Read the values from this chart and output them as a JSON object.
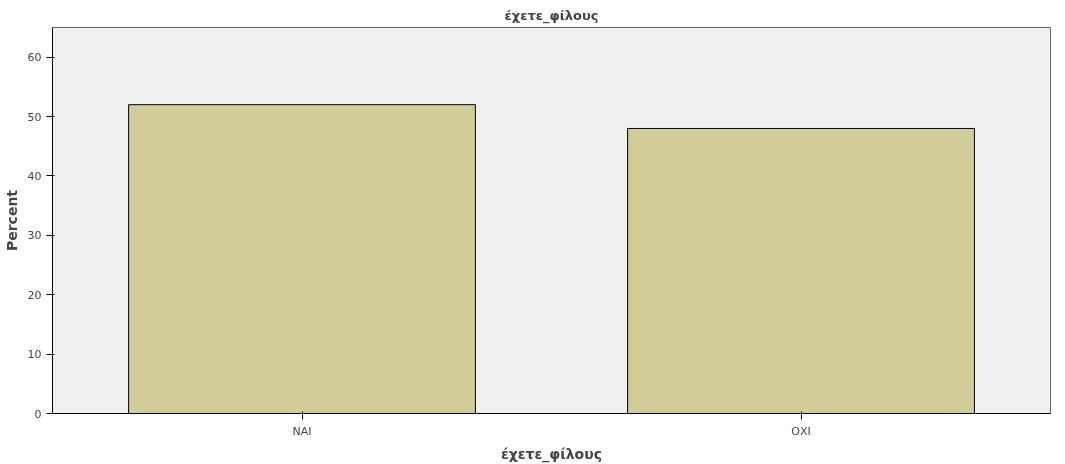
{
  "chart_data": {
    "type": "bar",
    "title": "έχετε_φίλους",
    "xlabel": "έχετε_φίλους",
    "ylabel": "Percent",
    "categories": [
      "ΝΑΙ",
      "ΟΧΙ"
    ],
    "values": [
      52,
      48
    ],
    "color": "#d2cd98",
    "ylim": [
      0,
      65
    ],
    "yticks": [
      0,
      10,
      20,
      30,
      40,
      50,
      60
    ],
    "grid": false
  }
}
